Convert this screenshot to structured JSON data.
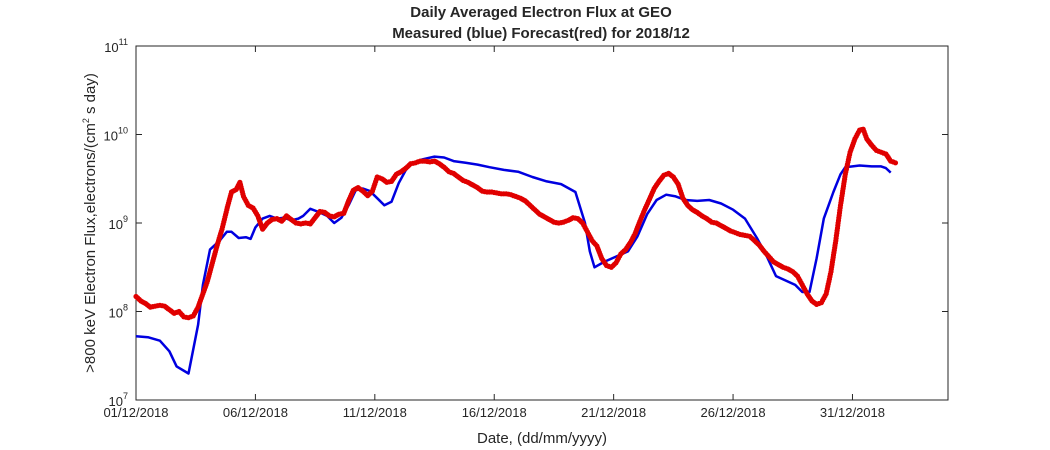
{
  "chart_data": {
    "type": "line",
    "title": "Daily Averaged Electron Flux at GEO",
    "subtitle": "Measured (blue) Forecast(red) for 2018/12",
    "xlabel": "Date, (dd/mm/yyyy)",
    "ylabel": ">800 keV Electron Flux,electrons/(cm",
    "ylabel_sup": "2",
    "ylabel_tail": " s day)",
    "x_ticks": [
      "01/12/2018",
      "06/12/2018",
      "11/12/2018",
      "16/12/2018",
      "21/12/2018",
      "26/12/2018",
      "31/12/2018"
    ],
    "y_ticks": [
      {
        "base": "10",
        "exp": "7",
        "value": 7
      },
      {
        "base": "10",
        "exp": "8",
        "value": 8
      },
      {
        "base": "10",
        "exp": "9",
        "value": 9
      },
      {
        "base": "10",
        "exp": "10",
        "value": 10
      },
      {
        "base": "10",
        "exp": "11",
        "value": 11
      }
    ],
    "xlim_days": [
      0,
      34
    ],
    "ylim_log10": [
      7,
      11
    ],
    "y_scale": "log",
    "grid": false,
    "series": [
      {
        "name": "Measured",
        "color": "#0000e0",
        "style": "line",
        "points": [
          [
            0.0,
            7.72
          ],
          [
            0.5,
            7.71
          ],
          [
            1.0,
            7.67
          ],
          [
            1.4,
            7.55
          ],
          [
            1.7,
            7.38
          ],
          [
            2.2,
            7.3
          ],
          [
            2.6,
            7.85
          ],
          [
            2.8,
            8.3
          ],
          [
            3.1,
            8.7
          ],
          [
            3.5,
            8.8
          ],
          [
            3.8,
            8.9
          ],
          [
            4.0,
            8.9
          ],
          [
            4.3,
            8.83
          ],
          [
            4.6,
            8.84
          ],
          [
            4.8,
            8.82
          ],
          [
            5.0,
            8.95
          ],
          [
            5.3,
            9.05
          ],
          [
            5.6,
            9.08
          ],
          [
            5.9,
            9.05
          ],
          [
            6.2,
            9.06
          ],
          [
            6.5,
            9.03
          ],
          [
            6.8,
            9.05
          ],
          [
            7.0,
            9.08
          ],
          [
            7.3,
            9.16
          ],
          [
            7.6,
            9.13
          ],
          [
            8.0,
            9.08
          ],
          [
            8.3,
            9.0
          ],
          [
            8.6,
            9.06
          ],
          [
            8.9,
            9.2
          ],
          [
            9.2,
            9.37
          ],
          [
            9.5,
            9.39
          ],
          [
            9.8,
            9.36
          ],
          [
            10.1,
            9.28
          ],
          [
            10.4,
            9.2
          ],
          [
            10.7,
            9.24
          ],
          [
            11.0,
            9.45
          ],
          [
            11.3,
            9.6
          ],
          [
            11.6,
            9.68
          ],
          [
            12.0,
            9.72
          ],
          [
            12.5,
            9.75
          ],
          [
            12.9,
            9.74
          ],
          [
            13.3,
            9.7
          ],
          [
            13.8,
            9.68
          ],
          [
            14.3,
            9.66
          ],
          [
            14.8,
            9.63
          ],
          [
            15.4,
            9.6
          ],
          [
            16.0,
            9.58
          ],
          [
            16.6,
            9.52
          ],
          [
            17.2,
            9.47
          ],
          [
            17.8,
            9.44
          ],
          [
            18.4,
            9.35
          ],
          [
            18.8,
            9.0
          ],
          [
            19.0,
            8.68
          ],
          [
            19.2,
            8.5
          ],
          [
            19.6,
            8.56
          ],
          [
            20.1,
            8.62
          ],
          [
            20.6,
            8.68
          ],
          [
            21.0,
            8.85
          ],
          [
            21.4,
            9.1
          ],
          [
            21.8,
            9.26
          ],
          [
            22.2,
            9.32
          ],
          [
            22.6,
            9.3
          ],
          [
            23.0,
            9.26
          ],
          [
            23.5,
            9.25
          ],
          [
            24.0,
            9.26
          ],
          [
            24.5,
            9.22
          ],
          [
            25.0,
            9.15
          ],
          [
            25.5,
            9.05
          ],
          [
            26.0,
            8.83
          ],
          [
            26.4,
            8.63
          ],
          [
            26.8,
            8.4
          ],
          [
            27.2,
            8.35
          ],
          [
            27.6,
            8.3
          ],
          [
            27.9,
            8.22
          ],
          [
            28.2,
            8.22
          ],
          [
            28.5,
            8.6
          ],
          [
            28.8,
            9.05
          ],
          [
            29.0,
            9.2
          ],
          [
            29.2,
            9.35
          ],
          [
            29.5,
            9.55
          ],
          [
            29.7,
            9.63
          ],
          [
            30.0,
            9.64
          ],
          [
            30.3,
            9.65
          ],
          [
            30.8,
            9.64
          ],
          [
            31.2,
            9.64
          ],
          [
            31.4,
            9.62
          ],
          [
            31.6,
            9.57
          ]
        ]
      },
      {
        "name": "Forecast",
        "color": "#e00000",
        "style": "dots",
        "points": [
          [
            0.0,
            8.17
          ],
          [
            0.2,
            8.12
          ],
          [
            0.4,
            8.09
          ],
          [
            0.6,
            8.05
          ],
          [
            0.8,
            8.06
          ],
          [
            1.0,
            8.07
          ],
          [
            1.2,
            8.06
          ],
          [
            1.4,
            8.02
          ],
          [
            1.6,
            7.98
          ],
          [
            1.8,
            8.0
          ],
          [
            2.0,
            7.94
          ],
          [
            2.2,
            7.93
          ],
          [
            2.4,
            7.95
          ],
          [
            2.6,
            8.05
          ],
          [
            2.8,
            8.2
          ],
          [
            3.0,
            8.35
          ],
          [
            3.2,
            8.55
          ],
          [
            3.4,
            8.75
          ],
          [
            3.6,
            8.93
          ],
          [
            3.8,
            9.15
          ],
          [
            4.0,
            9.35
          ],
          [
            4.2,
            9.38
          ],
          [
            4.35,
            9.46
          ],
          [
            4.5,
            9.3
          ],
          [
            4.7,
            9.2
          ],
          [
            4.9,
            9.17
          ],
          [
            5.1,
            9.08
          ],
          [
            5.3,
            8.93
          ],
          [
            5.5,
            9.0
          ],
          [
            5.7,
            9.04
          ],
          [
            5.9,
            9.05
          ],
          [
            6.1,
            9.02
          ],
          [
            6.3,
            9.08
          ],
          [
            6.5,
            9.04
          ],
          [
            6.7,
            9.0
          ],
          [
            6.9,
            8.99
          ],
          [
            7.1,
            9.0
          ],
          [
            7.3,
            8.99
          ],
          [
            7.5,
            9.06
          ],
          [
            7.7,
            9.13
          ],
          [
            7.9,
            9.12
          ],
          [
            8.1,
            9.08
          ],
          [
            8.3,
            9.07
          ],
          [
            8.5,
            9.1
          ],
          [
            8.7,
            9.11
          ],
          [
            8.9,
            9.25
          ],
          [
            9.1,
            9.37
          ],
          [
            9.3,
            9.4
          ],
          [
            9.5,
            9.36
          ],
          [
            9.7,
            9.31
          ],
          [
            9.9,
            9.36
          ],
          [
            10.1,
            9.52
          ],
          [
            10.3,
            9.5
          ],
          [
            10.5,
            9.46
          ],
          [
            10.7,
            9.47
          ],
          [
            10.9,
            9.55
          ],
          [
            11.1,
            9.58
          ],
          [
            11.3,
            9.62
          ],
          [
            11.5,
            9.67
          ],
          [
            11.7,
            9.68
          ],
          [
            11.9,
            9.7
          ],
          [
            12.1,
            9.7
          ],
          [
            12.3,
            9.69
          ],
          [
            12.5,
            9.7
          ],
          [
            12.7,
            9.67
          ],
          [
            12.9,
            9.63
          ],
          [
            13.1,
            9.58
          ],
          [
            13.3,
            9.56
          ],
          [
            13.5,
            9.52
          ],
          [
            13.7,
            9.48
          ],
          [
            13.9,
            9.46
          ],
          [
            14.1,
            9.43
          ],
          [
            14.3,
            9.4
          ],
          [
            14.5,
            9.36
          ],
          [
            14.7,
            9.35
          ],
          [
            14.9,
            9.35
          ],
          [
            15.1,
            9.34
          ],
          [
            15.3,
            9.33
          ],
          [
            15.5,
            9.33
          ],
          [
            15.7,
            9.32
          ],
          [
            15.9,
            9.3
          ],
          [
            16.1,
            9.28
          ],
          [
            16.3,
            9.25
          ],
          [
            16.5,
            9.2
          ],
          [
            16.7,
            9.15
          ],
          [
            16.9,
            9.1
          ],
          [
            17.1,
            9.07
          ],
          [
            17.3,
            9.04
          ],
          [
            17.5,
            9.01
          ],
          [
            17.7,
            9.0
          ],
          [
            17.9,
            9.01
          ],
          [
            18.1,
            9.03
          ],
          [
            18.3,
            9.06
          ],
          [
            18.5,
            9.05
          ],
          [
            18.7,
            9.0
          ],
          [
            18.9,
            8.9
          ],
          [
            19.1,
            8.8
          ],
          [
            19.3,
            8.74
          ],
          [
            19.5,
            8.6
          ],
          [
            19.7,
            8.52
          ],
          [
            19.9,
            8.5
          ],
          [
            20.1,
            8.55
          ],
          [
            20.3,
            8.65
          ],
          [
            20.5,
            8.7
          ],
          [
            20.7,
            8.78
          ],
          [
            20.9,
            8.88
          ],
          [
            21.1,
            9.02
          ],
          [
            21.3,
            9.15
          ],
          [
            21.5,
            9.27
          ],
          [
            21.7,
            9.39
          ],
          [
            21.9,
            9.47
          ],
          [
            22.1,
            9.54
          ],
          [
            22.3,
            9.56
          ],
          [
            22.5,
            9.52
          ],
          [
            22.7,
            9.44
          ],
          [
            22.9,
            9.28
          ],
          [
            23.1,
            9.2
          ],
          [
            23.3,
            9.15
          ],
          [
            23.5,
            9.12
          ],
          [
            23.7,
            9.08
          ],
          [
            23.9,
            9.05
          ],
          [
            24.1,
            9.01
          ],
          [
            24.3,
            9.0
          ],
          [
            24.5,
            8.97
          ],
          [
            24.7,
            8.94
          ],
          [
            24.9,
            8.91
          ],
          [
            25.1,
            8.89
          ],
          [
            25.3,
            8.87
          ],
          [
            25.5,
            8.86
          ],
          [
            25.7,
            8.85
          ],
          [
            25.9,
            8.8
          ],
          [
            26.1,
            8.75
          ],
          [
            26.3,
            8.68
          ],
          [
            26.5,
            8.62
          ],
          [
            26.7,
            8.56
          ],
          [
            26.9,
            8.53
          ],
          [
            27.1,
            8.5
          ],
          [
            27.3,
            8.48
          ],
          [
            27.5,
            8.45
          ],
          [
            27.7,
            8.4
          ],
          [
            27.9,
            8.3
          ],
          [
            28.1,
            8.2
          ],
          [
            28.3,
            8.12
          ],
          [
            28.5,
            8.08
          ],
          [
            28.7,
            8.1
          ],
          [
            28.9,
            8.2
          ],
          [
            29.1,
            8.45
          ],
          [
            29.3,
            8.8
          ],
          [
            29.5,
            9.2
          ],
          [
            29.7,
            9.55
          ],
          [
            29.9,
            9.8
          ],
          [
            30.1,
            9.95
          ],
          [
            30.3,
            10.05
          ],
          [
            30.45,
            10.06
          ],
          [
            30.6,
            9.95
          ],
          [
            30.8,
            9.88
          ],
          [
            31.0,
            9.82
          ],
          [
            31.2,
            9.8
          ],
          [
            31.4,
            9.78
          ],
          [
            31.6,
            9.7
          ],
          [
            31.8,
            9.68
          ]
        ]
      }
    ]
  }
}
